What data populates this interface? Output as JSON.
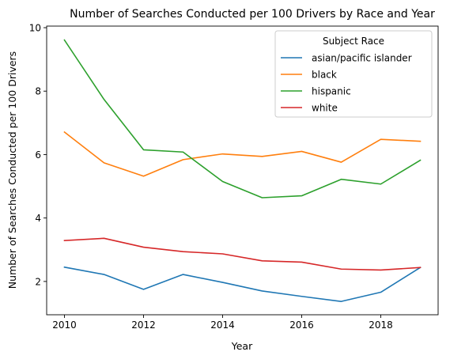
{
  "chart_data": {
    "type": "line",
    "title": "Number of Searches Conducted per 100 Drivers by Race and Year",
    "xlabel": "Year",
    "ylabel": "Number of Searches Conducted per 100 Drivers",
    "x": [
      2010,
      2011,
      2012,
      2013,
      2014,
      2015,
      2016,
      2017,
      2018,
      2019
    ],
    "xlim": [
      2009.55,
      2019.45
    ],
    "ylim": [
      0.95,
      10.05
    ],
    "xticks": [
      2010,
      2012,
      2014,
      2016,
      2018
    ],
    "yticks": [
      2,
      4,
      6,
      8,
      10
    ],
    "grid": false,
    "legend": {
      "title": "Subject Race",
      "placement": "top-right"
    },
    "series": [
      {
        "name": "asian/pacific islander",
        "color": "#1f77b4",
        "values": [
          2.45,
          2.22,
          1.75,
          2.22,
          1.97,
          1.7,
          1.53,
          1.37,
          1.66,
          2.44
        ]
      },
      {
        "name": "black",
        "color": "#ff7f0e",
        "values": [
          6.71,
          5.74,
          5.32,
          5.84,
          6.02,
          5.94,
          6.1,
          5.76,
          6.48,
          6.42
        ]
      },
      {
        "name": "hispanic",
        "color": "#2ca02c",
        "values": [
          9.61,
          7.74,
          6.15,
          6.08,
          5.15,
          4.64,
          4.7,
          5.22,
          5.07,
          5.82
        ]
      },
      {
        "name": "white",
        "color": "#d62728",
        "values": [
          3.29,
          3.36,
          3.08,
          2.94,
          2.87,
          2.65,
          2.61,
          2.39,
          2.36,
          2.44
        ]
      }
    ]
  }
}
